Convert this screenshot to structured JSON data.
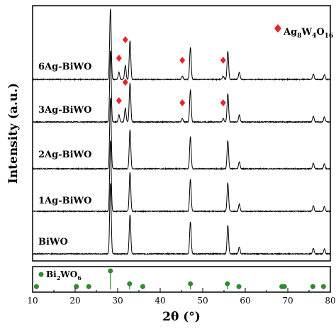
{
  "chart_data": {
    "type": "line",
    "xlabel": "2θ (°)",
    "ylabel": "Intensity (a.u.)",
    "xlim": [
      10,
      80
    ],
    "x_ticks": [
      "10",
      "20",
      "30",
      "40",
      "50",
      "60",
      "70",
      "80"
    ],
    "y_ticks": "none",
    "legend": {
      "label_main": "Ag",
      "sub1": "8",
      "mid": "W",
      "sub2": "4",
      "mid2": "O",
      "sub3": "16",
      "marker": "red-diamond",
      "placement": "top-right"
    },
    "series": [
      {
        "name": "BiWO",
        "peaks": [
          {
            "x": 28.3,
            "h": 1.0
          },
          {
            "x": 32.9,
            "h": 0.55
          },
          {
            "x": 47.1,
            "h": 0.45
          },
          {
            "x": 55.9,
            "h": 0.4
          },
          {
            "x": 58.6,
            "h": 0.1
          },
          {
            "x": 76.0,
            "h": 0.08
          },
          {
            "x": 78.6,
            "h": 0.07
          }
        ]
      },
      {
        "name": "1Ag-BiWO",
        "peaks": [
          {
            "x": 28.3,
            "h": 1.0
          },
          {
            "x": 32.9,
            "h": 0.55
          },
          {
            "x": 47.1,
            "h": 0.45
          },
          {
            "x": 55.9,
            "h": 0.4
          },
          {
            "x": 58.6,
            "h": 0.1
          },
          {
            "x": 76.0,
            "h": 0.08
          },
          {
            "x": 78.6,
            "h": 0.07
          }
        ]
      },
      {
        "name": "2Ag-BiWO",
        "peaks": [
          {
            "x": 28.3,
            "h": 1.0
          },
          {
            "x": 32.9,
            "h": 0.55
          },
          {
            "x": 47.1,
            "h": 0.45
          },
          {
            "x": 55.9,
            "h": 0.4
          },
          {
            "x": 58.6,
            "h": 0.1
          },
          {
            "x": 76.0,
            "h": 0.08
          },
          {
            "x": 78.6,
            "h": 0.07
          }
        ]
      },
      {
        "name": "3Ag-BiWO",
        "peaks": [
          {
            "x": 28.3,
            "h": 1.0
          },
          {
            "x": 30.3,
            "h": 0.1
          },
          {
            "x": 31.8,
            "h": 0.2
          },
          {
            "x": 32.9,
            "h": 0.55
          },
          {
            "x": 45.2,
            "h": 0.05
          },
          {
            "x": 47.1,
            "h": 0.45
          },
          {
            "x": 54.8,
            "h": 0.05
          },
          {
            "x": 55.9,
            "h": 0.4
          },
          {
            "x": 58.6,
            "h": 0.1
          },
          {
            "x": 76.0,
            "h": 0.08
          },
          {
            "x": 78.6,
            "h": 0.07
          }
        ]
      },
      {
        "name": "6Ag-BiWO",
        "peaks": [
          {
            "x": 28.3,
            "h": 1.0
          },
          {
            "x": 30.3,
            "h": 0.1
          },
          {
            "x": 31.8,
            "h": 0.2
          },
          {
            "x": 32.9,
            "h": 0.55
          },
          {
            "x": 45.2,
            "h": 0.05
          },
          {
            "x": 47.1,
            "h": 0.45
          },
          {
            "x": 54.8,
            "h": 0.05
          },
          {
            "x": 55.9,
            "h": 0.4
          },
          {
            "x": 58.6,
            "h": 0.1
          },
          {
            "x": 76.0,
            "h": 0.08
          },
          {
            "x": 78.6,
            "h": 0.07
          }
        ]
      }
    ],
    "ag_markers": [
      {
        "series": "3Ag-BiWO",
        "x": [
          30.3,
          31.8,
          45.2,
          54.8
        ]
      },
      {
        "series": "6Ag-BiWO",
        "x": [
          30.3,
          31.8,
          45.2,
          54.8
        ]
      }
    ],
    "reference": {
      "label_main": "Bi",
      "sub1": "2",
      "mid": "WO",
      "sub2": "6",
      "marker": "green-circle",
      "sticks": [
        {
          "x": 10.9,
          "h": 0.15
        },
        {
          "x": 20.3,
          "h": 0.15
        },
        {
          "x": 23.2,
          "h": 0.15
        },
        {
          "x": 28.3,
          "h": 1.0
        },
        {
          "x": 32.8,
          "h": 0.3
        },
        {
          "x": 35.9,
          "h": 0.15
        },
        {
          "x": 47.1,
          "h": 0.3
        },
        {
          "x": 55.8,
          "h": 0.3
        },
        {
          "x": 58.5,
          "h": 0.15
        },
        {
          "x": 68.6,
          "h": 0.15
        },
        {
          "x": 69.2,
          "h": 0.15
        },
        {
          "x": 75.9,
          "h": 0.15
        },
        {
          "x": 78.4,
          "h": 0.15
        }
      ]
    }
  }
}
